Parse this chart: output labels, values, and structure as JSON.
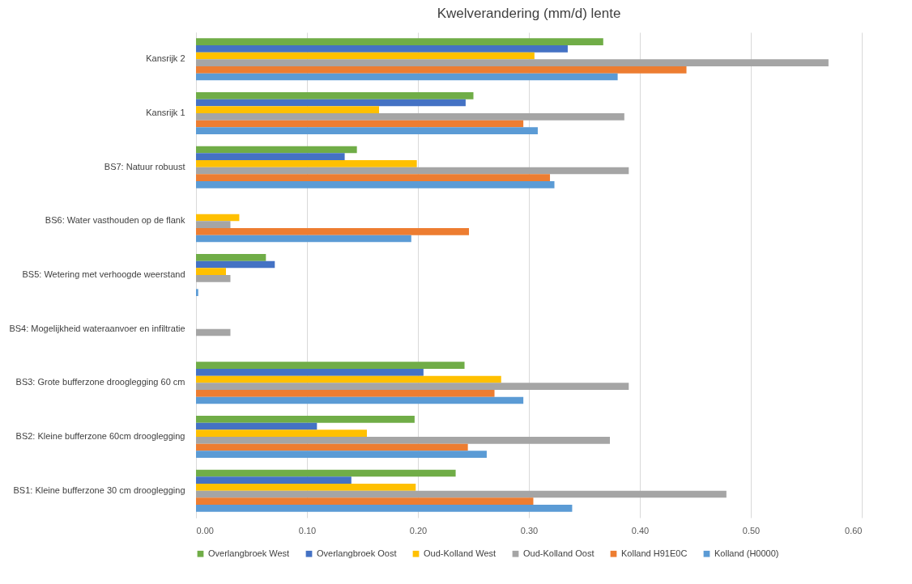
{
  "chart_data": {
    "type": "bar",
    "orientation": "horizontal",
    "title": "Kwelverandering (mm/d) lente",
    "categories": [
      "Kansrijk 2",
      "Kansrijk 1",
      "BS7: Natuur robuust",
      "BS6: Water vasthouden op de flank",
      "BS5: Wetering met verhoogde weerstand",
      "BS4: Mogelijkheid wateraanvoer en infiltratie",
      "BS3: Grote bufferzone drooglegging 60 cm",
      "BS2: Kleine bufferzone 60cm drooglegging",
      "BS1: Kleine bufferzone 30 cm drooglegging"
    ],
    "series": [
      {
        "name": "Overlangbroek West",
        "color": "#70ad47",
        "values": [
          0.367,
          0.25,
          0.145,
          null,
          0.063,
          null,
          0.242,
          0.197,
          0.234
        ]
      },
      {
        "name": "Overlangbroek Oost",
        "color": "#4472c4",
        "values": [
          0.335,
          0.243,
          0.134,
          null,
          0.071,
          null,
          0.205,
          0.109,
          0.14
        ]
      },
      {
        "name": "Oud-Kolland West",
        "color": "#ffc000",
        "values": [
          0.305,
          0.165,
          0.199,
          0.039,
          0.027,
          null,
          0.275,
          0.154,
          0.198
        ]
      },
      {
        "name": "Oud-Kolland Oost",
        "color": "#a5a5a5",
        "values": [
          0.57,
          0.386,
          0.39,
          0.031,
          0.031,
          0.031,
          0.39,
          0.373,
          0.478
        ]
      },
      {
        "name": "Kolland H91E0C",
        "color": "#ed7d31",
        "values": [
          0.442,
          0.295,
          0.319,
          0.246,
          null,
          null,
          0.269,
          0.245,
          0.304
        ]
      },
      {
        "name": "Kolland (H0000)",
        "color": "#5b9bd5",
        "values": [
          0.38,
          0.308,
          0.323,
          0.194,
          0.002,
          null,
          0.295,
          0.262,
          0.339
        ]
      }
    ],
    "xlim": [
      0,
      0.6
    ],
    "xticks": [
      {
        "value": 0,
        "label": "0.00"
      },
      {
        "value": 0.1,
        "label": "0.10"
      },
      {
        "value": 0.2,
        "label": "0.20"
      },
      {
        "value": 0.3,
        "label": "0.30"
      },
      {
        "value": 0.4,
        "label": "0.40"
      },
      {
        "value": 0.5,
        "label": "0.50"
      },
      {
        "value": 0.6,
        "label": "0.60"
      }
    ],
    "grid": "x",
    "legend": "bottom"
  }
}
